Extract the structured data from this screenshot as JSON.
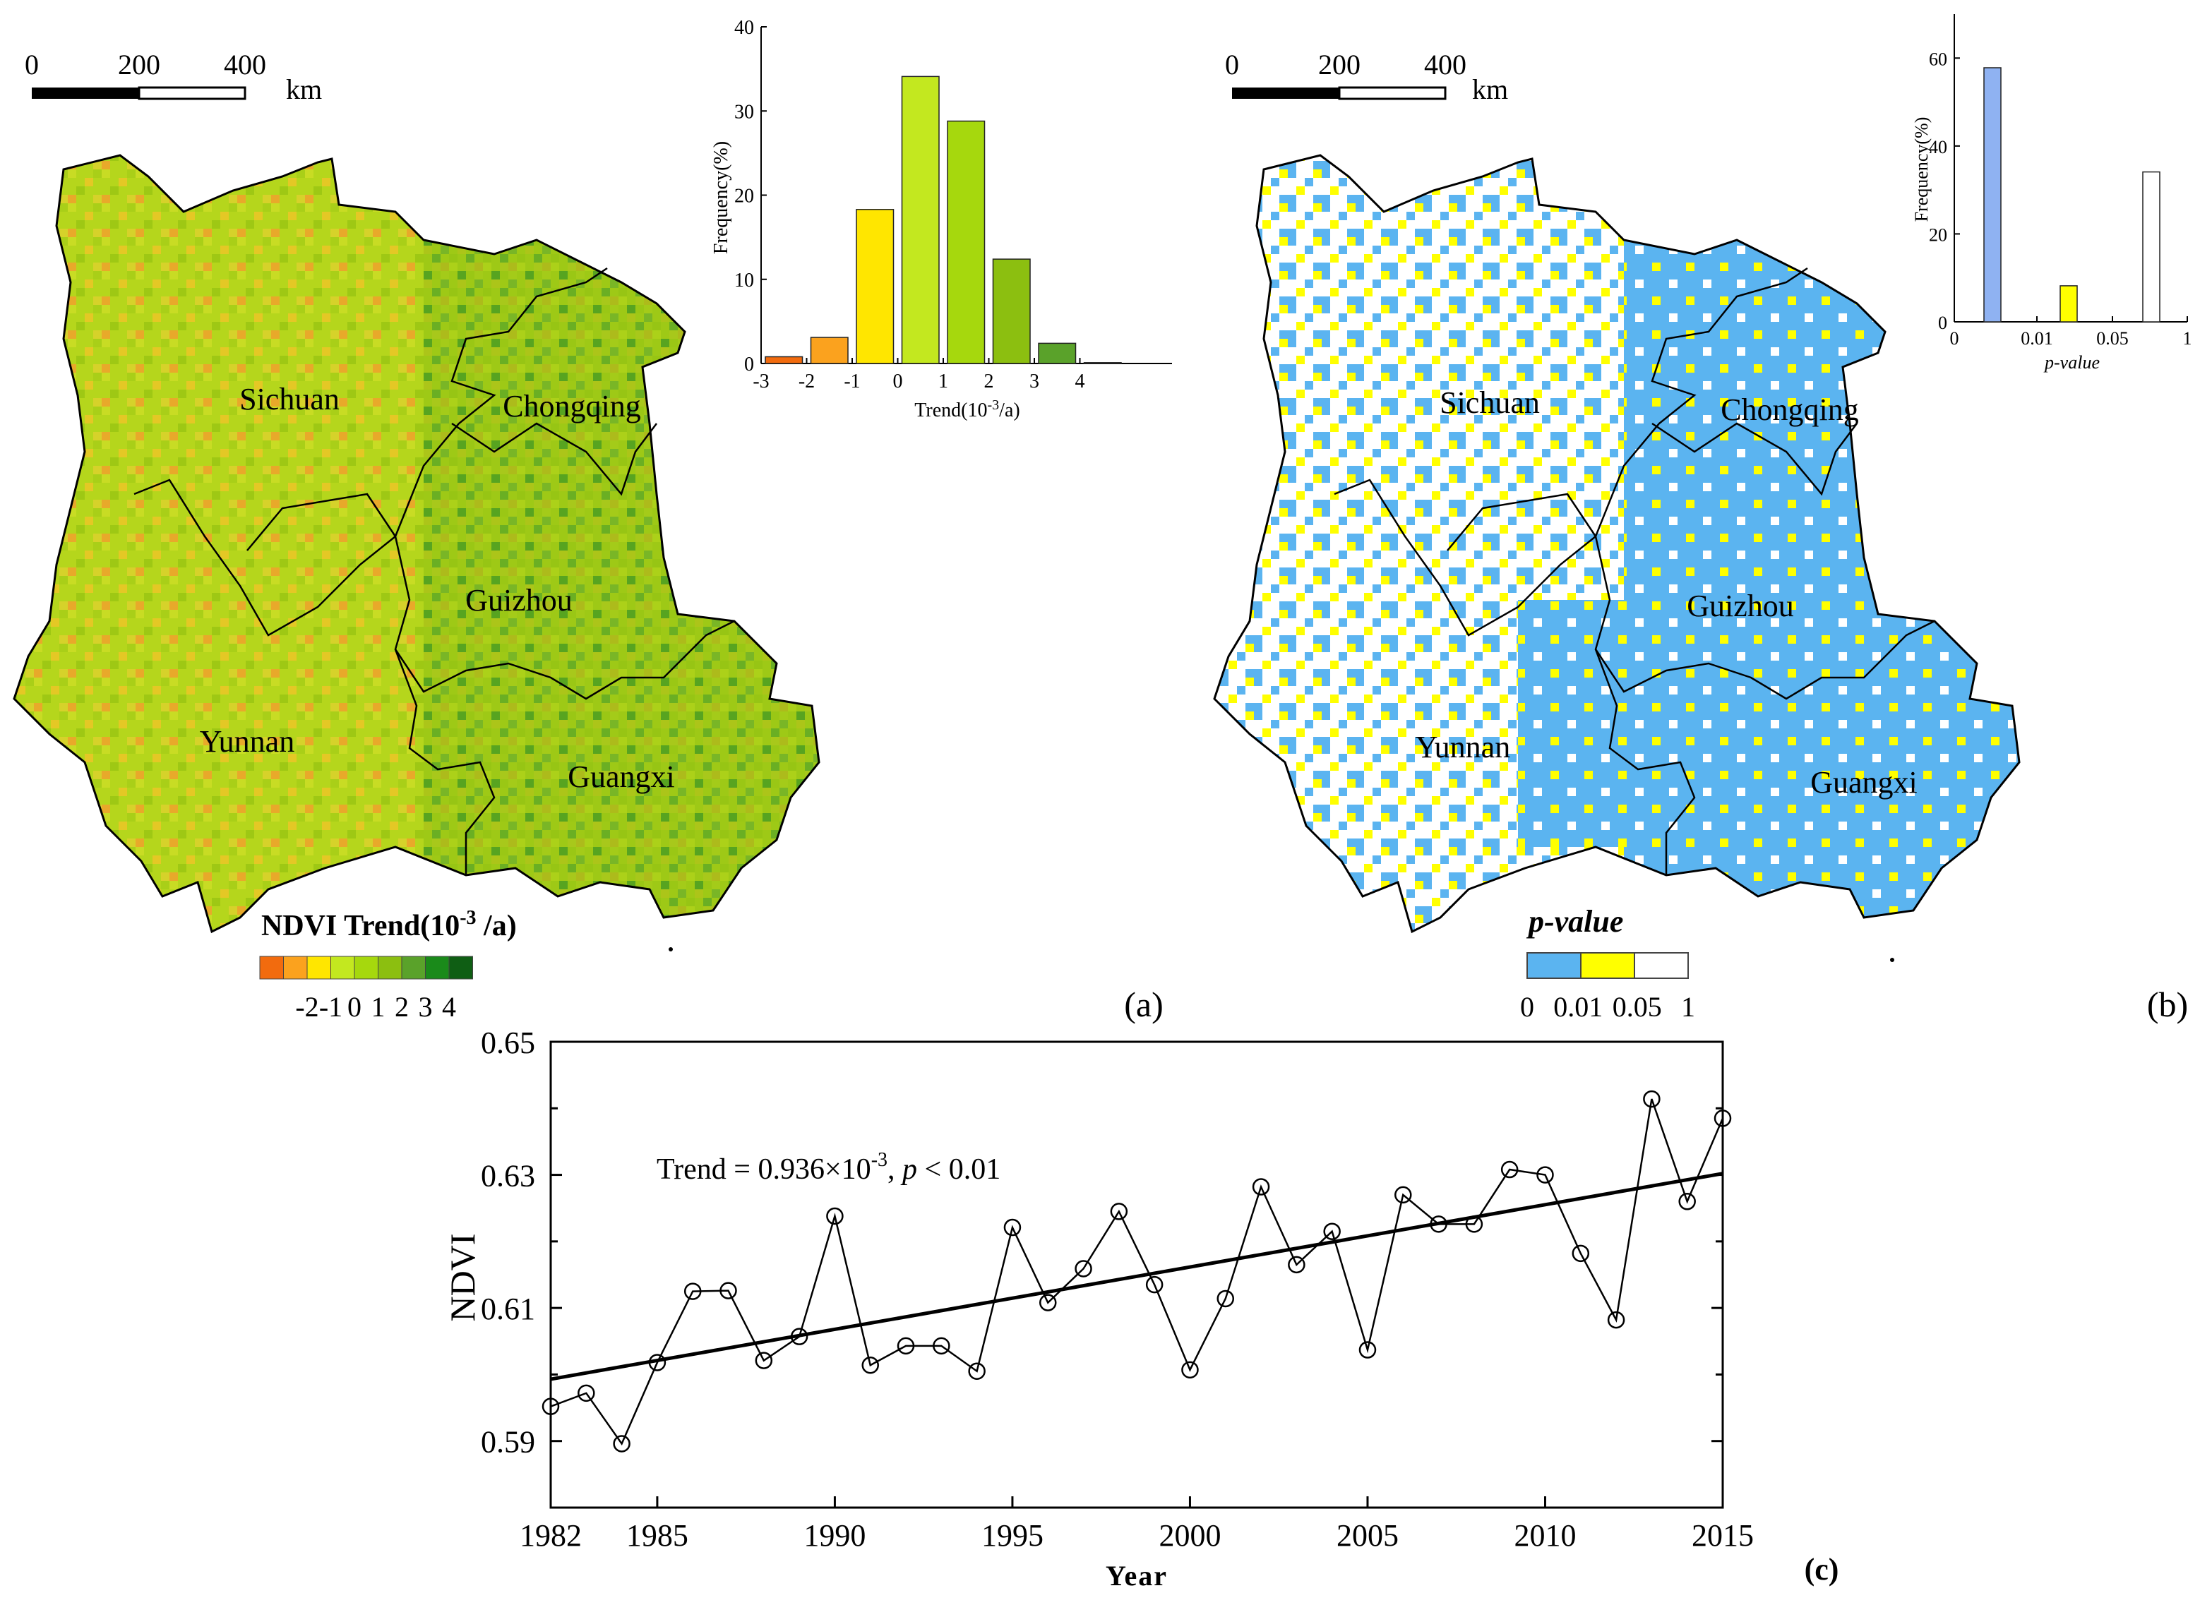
{
  "panel_a": {
    "scale_labels": [
      "0",
      "200",
      "400"
    ],
    "scale_unit": "km",
    "regions": [
      "Sichuan",
      "Chongqing",
      "Guizhou",
      "Yunnan",
      "Guangxi"
    ],
    "legend_title": "NDVI Trend(10",
    "legend_title_sup": "-3",
    "legend_title_end": " /a)",
    "legend_colors": [
      "#f26b0e",
      "#fba21e",
      "#ffe600",
      "#c3e81f",
      "#a6d80d",
      "#8cbf10",
      "#5aa22a",
      "#1a8a1a",
      "#0f5e14"
    ],
    "legend_ticks": [
      "-2",
      "-1",
      "0",
      "1",
      "2",
      "3",
      "4"
    ],
    "panel_label": "(a)"
  },
  "panel_b": {
    "scale_labels": [
      "0",
      "200",
      "400"
    ],
    "scale_unit": "km",
    "regions": [
      "Sichuan",
      "Chongqing",
      "Guizhou",
      "Yunnan",
      "Guangxi"
    ],
    "legend_title": "p-value",
    "legend_colors": [
      "#5bb4f0",
      "#ffff00",
      "#ffffff"
    ],
    "legend_ticks": [
      "0",
      "0.01",
      "0.05",
      "1"
    ],
    "panel_label": "(b)"
  },
  "chart_data": [
    {
      "type": "bar",
      "categories": [
        "-3–-2",
        "-2–-1",
        "-1–0",
        "0–1",
        "1–2",
        "2–3",
        "3–4",
        ">4"
      ],
      "values": [
        0.8,
        3.1,
        18.3,
        34.1,
        28.8,
        12.4,
        2.4,
        0.1
      ],
      "colors": [
        "#f26b0e",
        "#fba21e",
        "#ffe600",
        "#c3e81f",
        "#a6d80d",
        "#8cbf10",
        "#5aa22a",
        "#1a8a1a"
      ],
      "xlabel": "Trend(10",
      "xlabel_sup": "-3",
      "xlabel_end": "/a)",
      "ylabel": "Frequency(%)",
      "ylim": [
        0,
        40
      ],
      "yticks": [
        "0",
        "10",
        "20",
        "30",
        "40"
      ],
      "xticks": [
        "-3",
        "-2",
        "-1",
        "0",
        "1",
        "2",
        "3",
        "4"
      ]
    },
    {
      "type": "bar",
      "categories": [
        "0–0.01",
        "0.01–0.05",
        "0.05–1"
      ],
      "values": [
        57.8,
        8.2,
        34.1
      ],
      "colors": [
        "#8fb2f2",
        "#ffff00",
        "#ffffff"
      ],
      "xlabel": "p-value",
      "ylabel": "Frequency(%)",
      "ylim": [
        0,
        70
      ],
      "yticks": [
        "0",
        "20",
        "40",
        "60"
      ],
      "xticks": [
        "0",
        "0.01",
        "0.05",
        "1"
      ]
    },
    {
      "type": "line",
      "x": [
        1982,
        1983,
        1984,
        1985,
        1986,
        1987,
        1988,
        1989,
        1990,
        1991,
        1992,
        1993,
        1994,
        1995,
        1996,
        1997,
        1998,
        1999,
        2000,
        2001,
        2002,
        2003,
        2004,
        2005,
        2006,
        2007,
        2008,
        2009,
        2010,
        2011,
        2012,
        2013,
        2014,
        2015
      ],
      "y": [
        0.5952,
        0.5972,
        0.5896,
        0.6018,
        0.6125,
        0.6126,
        0.6021,
        0.6057,
        0.6238,
        0.6014,
        0.6043,
        0.6043,
        0.6005,
        0.6221,
        0.6108,
        0.6159,
        0.6245,
        0.6135,
        0.6007,
        0.6114,
        0.6282,
        0.6165,
        0.6215,
        0.6037,
        0.627,
        0.6226,
        0.6226,
        0.6308,
        0.63,
        0.6182,
        0.6082,
        0.6414,
        0.626,
        0.6385
      ],
      "trend_line": {
        "x": [
          1982,
          2015
        ],
        "y": [
          0.5993,
          0.6302
        ]
      },
      "annotation": "Trend = 0.936×10",
      "annotation_sup": "-3",
      "annotation_mid": ", ",
      "annotation_p": "p",
      "annotation_end": " < 0.01",
      "xlabel": "Year",
      "ylabel": "NDVI",
      "xlim": [
        1982,
        2015
      ],
      "ylim": [
        0.58,
        0.65
      ],
      "xticks": [
        "1982",
        "1985",
        "1990",
        "1995",
        "2000",
        "2005",
        "2010",
        "2015"
      ],
      "yticks": [
        "0.59",
        "0.61",
        "0.63",
        "0.65"
      ],
      "panel_label": "(c)"
    }
  ]
}
